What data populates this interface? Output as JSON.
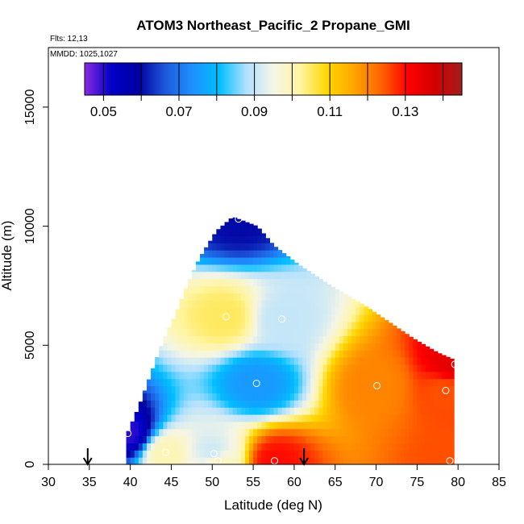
{
  "chart_data": {
    "type": "heatmap",
    "title": "ATOM3 Northeast_Pacific_2 Propane_GMI",
    "annotations": [
      "Flts: 12,13",
      "MMDD: 1025,1027"
    ],
    "xlabel": "Latitude (deg N)",
    "ylabel": "Altitude (m)",
    "xlim": [
      30,
      85
    ],
    "ylim": [
      0,
      17500
    ],
    "x_ticks": [
      30,
      35,
      40,
      45,
      50,
      55,
      60,
      65,
      70,
      75,
      80,
      85
    ],
    "y_ticks": [
      0,
      5000,
      10000,
      15000
    ],
    "colorbar": {
      "range": [
        0.045,
        0.145
      ],
      "tick_values": [
        0.05,
        0.07,
        0.09,
        0.11,
        0.13
      ],
      "tick_labels": [
        "0.05",
        "0.07",
        "0.09",
        "0.11",
        "0.13"
      ],
      "colors": [
        "#8a2be2",
        "#0000c8",
        "#0000a0",
        "#1e5adc",
        "#1e90ff",
        "#00bfff",
        "#b0e0ff",
        "#f5f5e6",
        "#fff5a0",
        "#ffd700",
        "#ffa500",
        "#ff6400",
        "#ff0000",
        "#d20000",
        "#a01e1e"
      ]
    },
    "flight_track_latitudes": [
      34.8,
      61.2
    ],
    "profile_top_altitudes": [
      {
        "lat": 39.5,
        "alt": 1200
      },
      {
        "lat": 41.0,
        "alt": 2400
      },
      {
        "lat": 42.5,
        "alt": 3800
      },
      {
        "lat": 44.0,
        "alt": 5200
      },
      {
        "lat": 45.5,
        "alt": 6300
      },
      {
        "lat": 47.0,
        "alt": 7600
      },
      {
        "lat": 48.5,
        "alt": 8700
      },
      {
        "lat": 50.5,
        "alt": 9800
      },
      {
        "lat": 52.5,
        "alt": 10400
      },
      {
        "lat": 55.5,
        "alt": 10000
      },
      {
        "lat": 57.5,
        "alt": 9200
      },
      {
        "lat": 60.5,
        "alt": 8400
      },
      {
        "lat": 64.5,
        "alt": 7500
      },
      {
        "lat": 68.5,
        "alt": 6700
      },
      {
        "lat": 71.5,
        "alt": 6000
      },
      {
        "lat": 74.5,
        "alt": 5300
      },
      {
        "lat": 77.5,
        "alt": 4700
      },
      {
        "lat": 79.5,
        "alt": 4400
      }
    ],
    "observations": [
      {
        "lat": 53.2,
        "alt": 10300,
        "value": 0.06
      },
      {
        "lat": 51.7,
        "alt": 6200,
        "value": 0.105
      },
      {
        "lat": 58.5,
        "alt": 6100,
        "value": 0.09
      },
      {
        "lat": 55.4,
        "alt": 3400,
        "value": 0.075
      },
      {
        "lat": 70.1,
        "alt": 3300,
        "value": 0.12
      },
      {
        "lat": 78.5,
        "alt": 3100,
        "value": 0.125
      },
      {
        "lat": 79.6,
        "alt": 4200,
        "value": 0.135
      },
      {
        "lat": 39.7,
        "alt": 1300,
        "value": 0.05
      },
      {
        "lat": 44.3,
        "alt": 500,
        "value": 0.1
      },
      {
        "lat": 50.2,
        "alt": 450,
        "value": 0.09
      },
      {
        "lat": 50.7,
        "alt": 150,
        "value": 0.1
      },
      {
        "lat": 57.6,
        "alt": 150,
        "value": 0.13
      },
      {
        "lat": 79.0,
        "alt": 150,
        "value": 0.125
      }
    ]
  }
}
